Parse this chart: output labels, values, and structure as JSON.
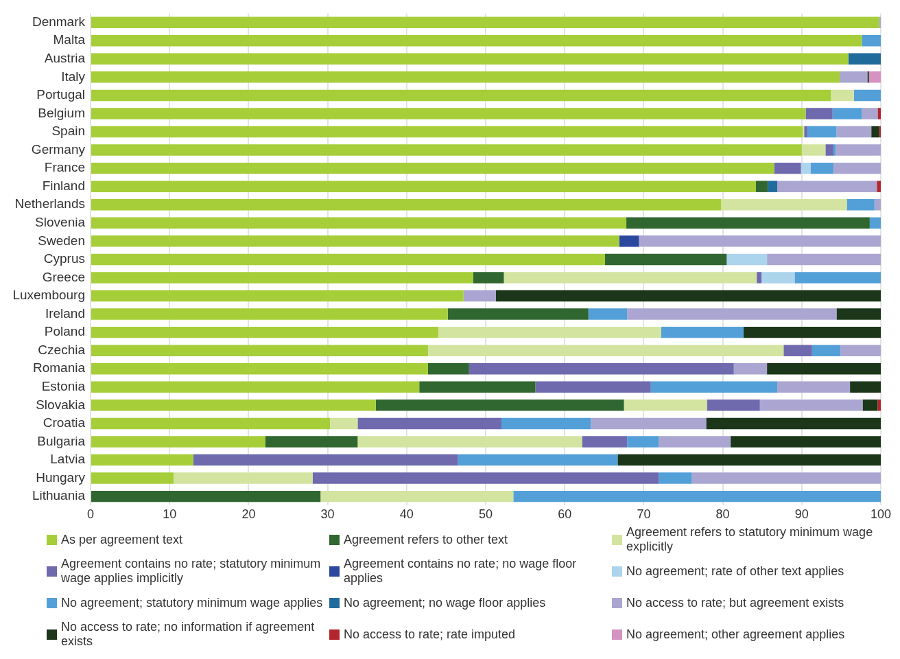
{
  "chart_data": {
    "type": "bar",
    "orientation": "horizontal",
    "stacked": true,
    "grid": "x",
    "legend": "bottom",
    "categories": [
      "Denmark",
      "Malta",
      "Austria",
      "Italy",
      "Portugal",
      "Belgium",
      "Spain",
      "Germany",
      "France",
      "Finland",
      "Netherlands",
      "Slovenia",
      "Sweden",
      "Cyprus",
      "Greece",
      "Luxembourg",
      "Ireland",
      "Poland",
      "Czechia",
      "Romania",
      "Estonia",
      "Slovakia",
      "Croatia",
      "Bulgaria",
      "Latvia",
      "Hungary",
      "Lithuania"
    ],
    "xlim": [
      0,
      100
    ],
    "xticks": [
      0,
      10,
      20,
      30,
      40,
      50,
      60,
      70,
      80,
      90,
      100
    ],
    "series": [
      {
        "name": "As per agreement text",
        "color": "#a6ce39",
        "values": [
          99.8,
          97.6,
          95.9,
          94.8,
          93.7,
          90.5,
          90.1,
          90.0,
          86.5,
          84.2,
          79.8,
          67.8,
          66.9,
          65.1,
          48.4,
          47.2,
          45.2,
          44.0,
          42.7,
          42.7,
          41.6,
          36.1,
          30.3,
          22.1,
          13.0,
          10.5,
          0
        ]
      },
      {
        "name": "Agreement refers to other text",
        "color": "#306630",
        "values": [
          0,
          0,
          0,
          0,
          0,
          0,
          0,
          0,
          0,
          1.5,
          0,
          30.8,
          0,
          15.4,
          3.9,
          0,
          17.8,
          0,
          0,
          5.2,
          14.7,
          31.4,
          0,
          11.7,
          0,
          0,
          29.1
        ]
      },
      {
        "name": "Agreement refers to statutory minimum wage explicitly",
        "color": "#d3e4a0",
        "values": [
          0,
          0,
          0,
          0,
          2.9,
          0,
          0.2,
          3.0,
          0,
          0,
          15.9,
          0,
          0,
          0,
          32.0,
          0,
          0,
          28.2,
          45.0,
          0,
          0,
          10.5,
          3.5,
          28.4,
          0,
          17.6,
          24.4
        ]
      },
      {
        "name": "Agreement contains no rate; statutory minimum wage applies implicitly",
        "color": "#6f69ae",
        "values": [
          0,
          0,
          0,
          0,
          0,
          3.4,
          0.4,
          1.0,
          3.4,
          0,
          0,
          0,
          0,
          0,
          0.6,
          0,
          0,
          0,
          3.6,
          33.5,
          14.6,
          6.7,
          18.2,
          5.7,
          33.5,
          43.8,
          0
        ]
      },
      {
        "name": "Agreement contains no rate; no wage floor applies",
        "color": "#2c489e",
        "values": [
          0,
          0,
          0,
          0,
          0,
          0,
          0,
          0,
          0,
          0,
          0,
          0,
          2.5,
          0,
          0,
          0,
          0,
          0,
          0,
          0,
          0,
          0,
          0,
          0,
          0,
          0,
          0
        ]
      },
      {
        "name": "No agreement; rate of other text applies",
        "color": "#acd4ec",
        "values": [
          0,
          0,
          0,
          0,
          0,
          0,
          0,
          0,
          1.2,
          0,
          0,
          0,
          0,
          5.1,
          4.2,
          0,
          0,
          0,
          0,
          0,
          0,
          0,
          0,
          0,
          0,
          0,
          0
        ]
      },
      {
        "name": "No agreement; statutory minimum wage applies",
        "color": "#53a0d8",
        "values": [
          0,
          2.4,
          0,
          0,
          3.4,
          3.7,
          3.7,
          0.3,
          2.9,
          0,
          3.5,
          1.4,
          0,
          0,
          10.9,
          0,
          4.9,
          10.4,
          3.6,
          0,
          16.0,
          0,
          11.3,
          4.0,
          20.2,
          4.2,
          46.5
        ]
      },
      {
        "name": "No agreement; no wage floor applies",
        "color": "#1f6b9b",
        "values": [
          0,
          0,
          4.1,
          0,
          0,
          0,
          0,
          0,
          0,
          1.2,
          0,
          0,
          0,
          0,
          0,
          0,
          0,
          0,
          0,
          0,
          0,
          0,
          0,
          0,
          0,
          0,
          0
        ]
      },
      {
        "name": "No access to rate; but agreement exists",
        "color": "#aaa6d1",
        "values": [
          0.2,
          0,
          0,
          3.5,
          0,
          2.0,
          4.4,
          5.7,
          6.0,
          12.6,
          0.8,
          0,
          30.6,
          14.4,
          0,
          4.1,
          26.5,
          0,
          5.1,
          4.2,
          9.2,
          13.0,
          14.6,
          9.1,
          0,
          23.9,
          0
        ]
      },
      {
        "name": "No access to rate; no information if agreement exists",
        "color": "#1b3619",
        "values": [
          0,
          0,
          0,
          0.2,
          0,
          0,
          1.0,
          0,
          0,
          0,
          0,
          0,
          0,
          0,
          0,
          48.7,
          5.6,
          17.4,
          0,
          14.4,
          3.9,
          1.9,
          22.1,
          19.0,
          33.3,
          0,
          0
        ]
      },
      {
        "name": "No access to rate; rate imputed",
        "color": "#b3262e",
        "values": [
          0,
          0,
          0,
          0,
          0,
          0.4,
          0.2,
          0,
          0,
          0.5,
          0,
          0,
          0,
          0,
          0,
          0,
          0,
          0,
          0,
          0,
          0,
          0.4,
          0,
          0,
          0,
          0,
          0
        ]
      },
      {
        "name": "No agreement; other agreement applies",
        "color": "#d592c2",
        "values": [
          0,
          0,
          0,
          1.5,
          0,
          0,
          0,
          0,
          0,
          0,
          0,
          0,
          0,
          0,
          0,
          0,
          0,
          0,
          0,
          0,
          0,
          0,
          0,
          0,
          0,
          0,
          0
        ]
      }
    ]
  }
}
